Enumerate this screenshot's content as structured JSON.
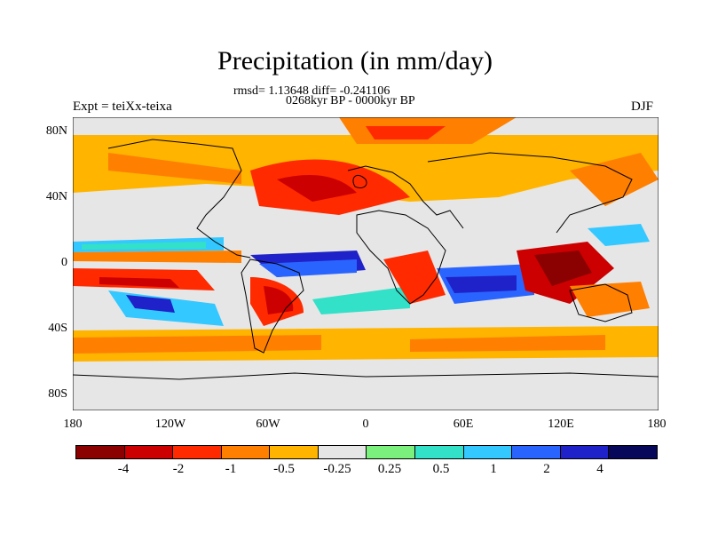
{
  "header": {
    "title": "Precipitation (in mm/day)",
    "stats": "rmsd= 1.13648 diff= -0.241106",
    "period": "0268kyr BP - 0000kyr BP",
    "experiment": "Expt = teiXx-teixa",
    "season": "DJF"
  },
  "axes": {
    "y_ticks": [
      "80N",
      "40N",
      "0",
      "40S",
      "80S"
    ],
    "x_ticks": [
      "180",
      "120W",
      "60W",
      "0",
      "60E",
      "120E",
      "180"
    ]
  },
  "colorbar": {
    "colors": [
      "#8b0000",
      "#cc0000",
      "#ff2a00",
      "#ff7f00",
      "#ffb400",
      "#e6e6e6",
      "#7cf07c",
      "#33e0c8",
      "#33c8ff",
      "#2a64ff",
      "#1e22c8",
      "#08085a"
    ],
    "labels": [
      "-4",
      "-2",
      "-1",
      "-0.5",
      "-0.25",
      "0.25",
      "0.5",
      "1",
      "2",
      "4"
    ]
  }
}
